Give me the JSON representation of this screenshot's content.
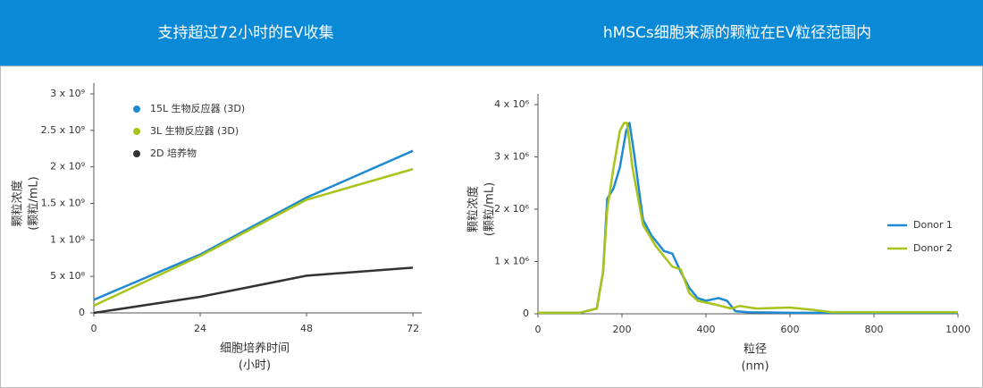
{
  "chart_data": [
    {
      "type": "line",
      "title": "支持超过72小时的EV收集",
      "xlabel": [
        "细胞培养时间",
        "(小时)"
      ],
      "ylabel": [
        "颗粒浓度",
        "(颗粒/mL)"
      ],
      "xlim": [
        0,
        74
      ],
      "xticks": [
        0,
        24,
        48,
        72
      ],
      "ylim": [
        0,
        3000000000
      ],
      "yticks": [
        0,
        {
          "value": 500000000,
          "label": "5 x 10⁸"
        },
        {
          "value": 1000000000,
          "label": "1 x 10⁹"
        },
        {
          "value": 1500000000,
          "label": "1.5 x 10⁹"
        },
        {
          "value": 2000000000,
          "label": "2 x 10⁹"
        },
        {
          "value": 2500000000,
          "label": "2.5 x 10⁹"
        },
        {
          "value": 3000000000,
          "label": "3 x 10⁹"
        }
      ],
      "legend": "top-left",
      "legend_style": "dot",
      "series": [
        {
          "name": "15L 生物反应器 (3D)",
          "color": "#1e8ad1",
          "x": [
            0,
            24,
            48,
            72
          ],
          "values": [
            180000000,
            800000000,
            1580000000,
            2220000000
          ]
        },
        {
          "name": "3L 生物反应器 (3D)",
          "color": "#a8c31a",
          "x": [
            0,
            24,
            48,
            72
          ],
          "values": [
            100000000,
            780000000,
            1550000000,
            1970000000
          ]
        },
        {
          "name": "2D 培养物",
          "color": "#333333",
          "x": [
            0,
            24,
            48,
            72
          ],
          "values": [
            0,
            220000000,
            510000000,
            620000000
          ]
        }
      ]
    },
    {
      "type": "line",
      "title": "hMSCs细胞来源的颗粒在EV粒径范围内",
      "xlabel": [
        "粒径",
        "(nm)"
      ],
      "ylabel": [
        "颗粒浓度",
        "(颗粒/mL)"
      ],
      "xlim": [
        0,
        1000
      ],
      "xticks": [
        0,
        200,
        400,
        600,
        800,
        1000
      ],
      "ylim": [
        0,
        4000000
      ],
      "yticks": [
        0,
        {
          "value": 1000000,
          "label": "1 x 10⁶"
        },
        {
          "value": 2000000,
          "label": "2 x 10⁶"
        },
        {
          "value": 3000000,
          "label": "3 x 10⁶"
        },
        {
          "value": 4000000,
          "label": "4 x 10⁶"
        }
      ],
      "legend": "right",
      "legend_style": "line",
      "series": [
        {
          "name": "Donor 1",
          "color": "#1e8ad1",
          "x": [
            0,
            100,
            140,
            155,
            165,
            180,
            195,
            210,
            218,
            230,
            250,
            270,
            300,
            320,
            340,
            360,
            380,
            400,
            430,
            450,
            470,
            500,
            600,
            1000
          ],
          "values": [
            20000,
            20000,
            100000,
            800000,
            2200000,
            2400000,
            2800000,
            3500000,
            3650000,
            3000000,
            1800000,
            1500000,
            1200000,
            1150000,
            800000,
            500000,
            300000,
            250000,
            300000,
            250000,
            50000,
            30000,
            20000,
            20000
          ]
        },
        {
          "name": "Donor 2",
          "color": "#a8c31a",
          "x": [
            0,
            100,
            140,
            155,
            165,
            180,
            195,
            205,
            212,
            225,
            250,
            280,
            300,
            320,
            340,
            360,
            380,
            420,
            460,
            480,
            520,
            600,
            650,
            700,
            1000
          ],
          "values": [
            20000,
            20000,
            100000,
            800000,
            2000000,
            2800000,
            3500000,
            3650000,
            3650000,
            2800000,
            1700000,
            1300000,
            1100000,
            900000,
            850000,
            400000,
            250000,
            180000,
            100000,
            150000,
            100000,
            120000,
            80000,
            30000,
            30000
          ]
        }
      ]
    }
  ]
}
